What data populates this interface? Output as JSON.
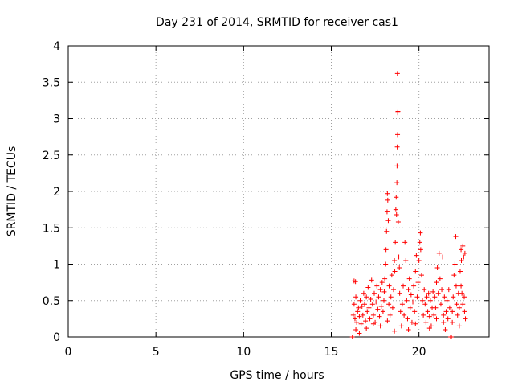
{
  "chart_data": {
    "type": "scatter",
    "title": "Day 231 of 2014, SRMTID for receiver cas1",
    "xlabel": "GPS time / hours",
    "ylabel": "SRMTID / TECUs",
    "xlim": [
      0,
      24
    ],
    "ylim": [
      0,
      4
    ],
    "xticks": [
      0,
      5,
      10,
      15,
      20
    ],
    "yticks": [
      0,
      0.5,
      1,
      1.5,
      2,
      2.5,
      3,
      3.5,
      4
    ],
    "ytick_labels": [
      "0",
      "0.5",
      "1",
      "1.5",
      "2",
      "2.5",
      "3",
      "3.5",
      "4"
    ],
    "grid": true,
    "marker": "+",
    "series": [
      {
        "name": "SRMTID",
        "color": "#ff0000",
        "points": [
          [
            16.2,
            0.0
          ],
          [
            16.25,
            0.3
          ],
          [
            16.3,
            0.45
          ],
          [
            16.35,
            0.25
          ],
          [
            16.4,
            0.55
          ],
          [
            16.45,
            0.2
          ],
          [
            16.5,
            0.35
          ],
          [
            16.3,
            0.77
          ],
          [
            16.38,
            0.76
          ],
          [
            16.55,
            0.4
          ],
          [
            16.6,
            0.28
          ],
          [
            16.65,
            0.5
          ],
          [
            16.7,
            0.18
          ],
          [
            16.75,
            0.42
          ],
          [
            16.8,
            0.3
          ],
          [
            16.85,
            0.6
          ],
          [
            16.9,
            0.45
          ],
          [
            16.95,
            0.22
          ],
          [
            17.0,
            0.55
          ],
          [
            17.05,
            0.35
          ],
          [
            17.1,
            0.68
          ],
          [
            17.15,
            0.4
          ],
          [
            17.2,
            0.25
          ],
          [
            17.25,
            0.52
          ],
          [
            17.3,
            0.78
          ],
          [
            17.35,
            0.45
          ],
          [
            17.4,
            0.3
          ],
          [
            17.45,
            0.6
          ],
          [
            17.5,
            0.2
          ],
          [
            17.55,
            0.48
          ],
          [
            17.6,
            0.7
          ],
          [
            17.65,
            0.38
          ],
          [
            17.7,
            0.55
          ],
          [
            17.75,
            0.28
          ],
          [
            17.8,
            0.65
          ],
          [
            17.85,
            0.42
          ],
          [
            17.9,
            0.75
          ],
          [
            17.95,
            0.35
          ],
          [
            18.0,
            0.5
          ],
          [
            18.02,
            0.62
          ],
          [
            18.05,
            0.8
          ],
          [
            18.1,
            1.0
          ],
          [
            18.12,
            1.2
          ],
          [
            18.15,
            1.45
          ],
          [
            18.18,
            1.72
          ],
          [
            18.2,
            1.97
          ],
          [
            18.22,
            1.88
          ],
          [
            18.25,
            1.6
          ],
          [
            18.28,
            0.45
          ],
          [
            18.3,
            0.7
          ],
          [
            18.35,
            0.3
          ],
          [
            18.4,
            0.55
          ],
          [
            18.45,
            0.85
          ],
          [
            18.5,
            0.4
          ],
          [
            18.55,
            0.65
          ],
          [
            18.6,
            1.05
          ],
          [
            18.62,
            0.9
          ],
          [
            18.65,
            1.3
          ],
          [
            18.68,
            1.75
          ],
          [
            18.7,
            1.92
          ],
          [
            18.72,
            1.68
          ],
          [
            18.74,
            2.12
          ],
          [
            18.75,
            2.35
          ],
          [
            18.76,
            2.61
          ],
          [
            18.78,
            2.78
          ],
          [
            18.79,
            3.08
          ],
          [
            18.8,
            3.1
          ],
          [
            18.77,
            3.62
          ],
          [
            18.82,
            1.58
          ],
          [
            18.85,
            1.1
          ],
          [
            18.88,
            0.95
          ],
          [
            18.9,
            0.6
          ],
          [
            18.95,
            0.35
          ],
          [
            19.0,
            0.15
          ],
          [
            19.05,
            0.45
          ],
          [
            19.1,
            0.7
          ],
          [
            19.15,
            0.3
          ],
          [
            19.2,
            1.3
          ],
          [
            19.25,
            1.05
          ],
          [
            19.3,
            0.5
          ],
          [
            19.35,
            0.25
          ],
          [
            19.4,
            0.65
          ],
          [
            19.45,
            0.8
          ],
          [
            19.5,
            0.4
          ],
          [
            19.55,
            0.58
          ],
          [
            19.6,
            0.2
          ],
          [
            19.65,
            0.48
          ],
          [
            19.7,
            0.7
          ],
          [
            19.75,
            0.35
          ],
          [
            19.8,
            0.9
          ],
          [
            19.85,
            1.12
          ],
          [
            19.9,
            0.55
          ],
          [
            19.95,
            0.75
          ],
          [
            20.0,
            1.05
          ],
          [
            20.05,
            1.3
          ],
          [
            20.08,
            1.43
          ],
          [
            20.1,
            1.2
          ],
          [
            20.15,
            0.85
          ],
          [
            20.2,
            0.5
          ],
          [
            20.25,
            0.3
          ],
          [
            20.3,
            0.65
          ],
          [
            20.35,
            0.45
          ],
          [
            20.4,
            0.2
          ],
          [
            20.45,
            0.55
          ],
          [
            20.5,
            0.35
          ],
          [
            20.55,
            0.6
          ],
          [
            20.6,
            0.28
          ],
          [
            20.65,
            0.5
          ],
          [
            20.7,
            0.15
          ],
          [
            20.75,
            0.4
          ],
          [
            20.8,
            0.62
          ],
          [
            20.85,
            0.3
          ],
          [
            20.9,
            0.55
          ],
          [
            20.95,
            0.4
          ],
          [
            21.0,
            0.75
          ],
          [
            21.05,
            0.95
          ],
          [
            21.1,
            0.6
          ],
          [
            21.15,
            1.15
          ],
          [
            21.2,
            0.8
          ],
          [
            21.25,
            0.45
          ],
          [
            21.3,
            0.65
          ],
          [
            21.35,
            1.1
          ],
          [
            21.4,
            0.3
          ],
          [
            21.45,
            0.55
          ],
          [
            21.5,
            0.1
          ],
          [
            21.55,
            0.35
          ],
          [
            21.6,
            0.5
          ],
          [
            21.65,
            0.25
          ],
          [
            21.7,
            0.65
          ],
          [
            21.75,
            0.4
          ],
          [
            21.8,
            0.0
          ],
          [
            21.85,
            0.0
          ],
          [
            21.9,
            0.2
          ],
          [
            21.95,
            0.55
          ],
          [
            22.0,
            0.85
          ],
          [
            22.05,
            1.0
          ],
          [
            22.1,
            1.38
          ],
          [
            22.12,
            0.7
          ],
          [
            22.15,
            0.45
          ],
          [
            22.2,
            0.3
          ],
          [
            22.25,
            0.6
          ],
          [
            22.3,
            0.15
          ],
          [
            22.35,
            0.9
          ],
          [
            22.4,
            1.2
          ],
          [
            22.42,
            1.05
          ],
          [
            22.45,
            0.6
          ],
          [
            22.5,
            1.25
          ],
          [
            22.55,
            1.1
          ],
          [
            22.58,
            0.55
          ],
          [
            22.6,
            0.35
          ],
          [
            22.62,
            1.15
          ],
          [
            22.65,
            0.25
          ],
          [
            22.5,
            0.45
          ],
          [
            22.4,
            0.7
          ],
          [
            16.4,
            0.1
          ],
          [
            16.6,
            0.05
          ],
          [
            17.0,
            0.12
          ],
          [
            17.4,
            0.18
          ],
          [
            17.8,
            0.15
          ],
          [
            18.2,
            0.22
          ],
          [
            18.6,
            0.08
          ],
          [
            19.4,
            0.1
          ],
          [
            19.8,
            0.18
          ],
          [
            20.6,
            0.12
          ],
          [
            21.0,
            0.25
          ],
          [
            21.4,
            0.2
          ],
          [
            21.9,
            0.35
          ],
          [
            22.3,
            0.4
          ]
        ]
      }
    ]
  }
}
